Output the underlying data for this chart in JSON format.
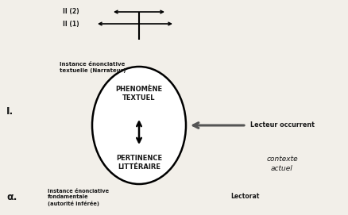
{
  "bg_color": "#f2efe9",
  "II2_label": "II (2)",
  "II1_label": "II (1)",
  "I_label": "I.",
  "alpha_label": "α.",
  "instance_text_top": "Instance énonciative\ntextuelle (Narrateur)",
  "instance_text_bottom": "Instance énonciative\nfondamentale\n(autorité inférée)",
  "phenomene_label": "PHENOMÈNE\nTEXTUEL",
  "pertinence_label": "PERTINENCE\nLITTÉRAIRE",
  "lecteur_label": "Lecteur occurrent",
  "contexte_label": "contexte\nactuel",
  "lectorat_label": "Lectorat",
  "text_color": "#1a1a1a"
}
